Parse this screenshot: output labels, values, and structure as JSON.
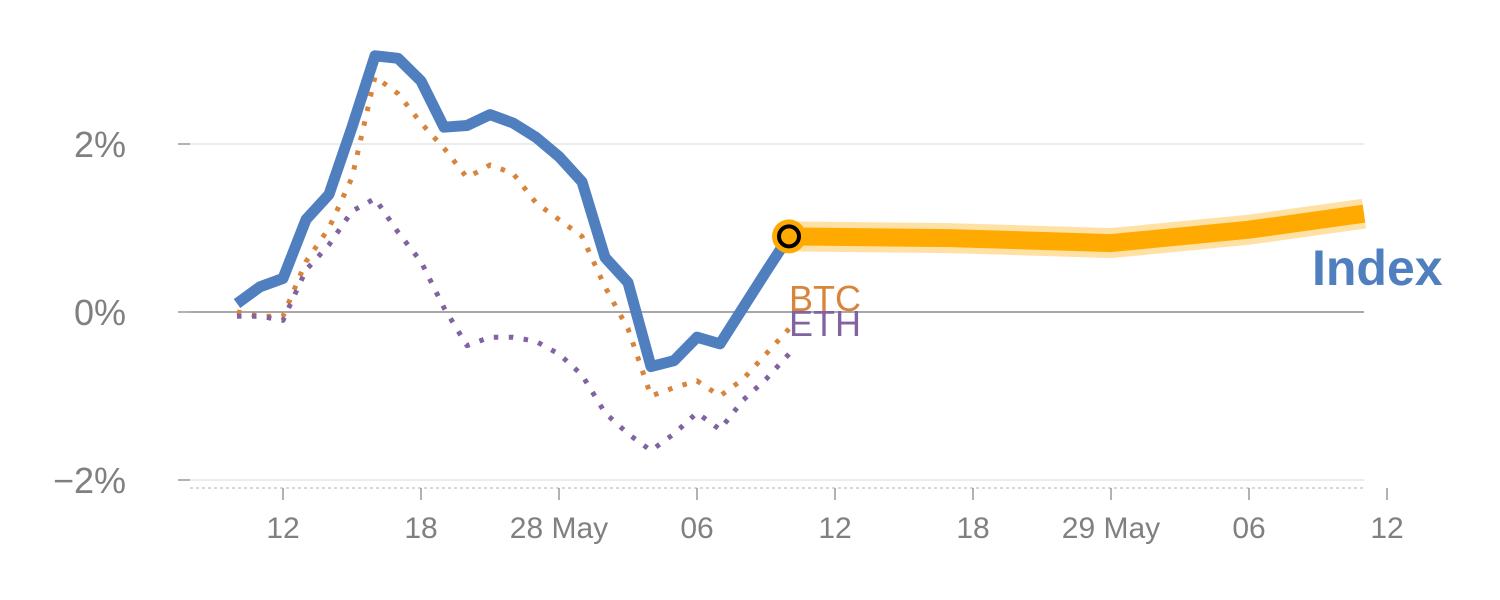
{
  "chart_data": {
    "type": "line",
    "title": "",
    "xlabel": "",
    "ylabel": "",
    "ylim": [
      -2,
      3.2
    ],
    "yticks": [
      {
        "value": -2,
        "label": "−2%"
      },
      {
        "value": 0,
        "label": "0%"
      },
      {
        "value": 2,
        "label": "2%"
      }
    ],
    "xticks": [
      {
        "day": 1,
        "label": "12"
      },
      {
        "day": 7,
        "label": "18"
      },
      {
        "day": 13,
        "label": "28 May"
      },
      {
        "day": 19,
        "label": "06"
      },
      {
        "day": 25,
        "label": "12"
      },
      {
        "day": 31,
        "label": "18"
      },
      {
        "day": 37,
        "label": "29 May"
      },
      {
        "day": 43,
        "label": "06"
      },
      {
        "day": 49,
        "label": "12"
      }
    ],
    "xlim": [
      -2,
      49
    ],
    "grid": true,
    "series": [
      {
        "name": "Index",
        "label": "Index",
        "color": "#4f7fbf",
        "style": "solid",
        "x": [
          -1,
          0,
          1,
          2,
          3,
          4,
          5,
          6,
          7,
          8,
          9,
          10,
          11,
          12,
          13,
          14,
          15,
          16,
          17,
          18,
          19,
          20,
          21,
          22,
          23
        ],
        "y": [
          0.1,
          0.3,
          0.4,
          1.1,
          1.4,
          2.2,
          3.05,
          3.02,
          2.75,
          2.2,
          2.22,
          2.35,
          2.25,
          2.08,
          1.85,
          1.55,
          0.65,
          0.35,
          -0.65,
          -0.58,
          -0.3,
          -0.38,
          0.05,
          0.48,
          0.9
        ]
      },
      {
        "name": "BTC",
        "label": "BTC",
        "color": "#d9843b",
        "style": "dotted",
        "x": [
          -1,
          0,
          1,
          2,
          3,
          4,
          5,
          6,
          7,
          8,
          9,
          10,
          11,
          12,
          13,
          14,
          15,
          16,
          17,
          18,
          19,
          20,
          21,
          22,
          23
        ],
        "y": [
          0.0,
          -0.05,
          -0.05,
          0.6,
          1.0,
          1.6,
          2.8,
          2.6,
          2.25,
          1.95,
          1.6,
          1.75,
          1.65,
          1.3,
          1.1,
          0.9,
          0.3,
          -0.2,
          -1.0,
          -0.9,
          -0.82,
          -1.0,
          -0.8,
          -0.5,
          -0.2
        ]
      },
      {
        "name": "ETH",
        "label": "ETH",
        "color": "#8064a2",
        "style": "dotted",
        "x": [
          -1,
          0,
          1,
          2,
          3,
          4,
          5,
          6,
          7,
          8,
          9,
          10,
          11,
          12,
          13,
          14,
          15,
          16,
          17,
          18,
          19,
          20,
          21,
          22,
          23
        ],
        "y": [
          -0.05,
          -0.05,
          -0.1,
          0.5,
          0.8,
          1.2,
          1.35,
          0.95,
          0.6,
          0.05,
          -0.4,
          -0.3,
          -0.3,
          -0.35,
          -0.5,
          -0.75,
          -1.2,
          -1.45,
          -1.65,
          -1.45,
          -1.2,
          -1.4,
          -1.05,
          -0.8,
          -0.5
        ]
      },
      {
        "name": "Forecast",
        "color": "#ffaa00",
        "style": "forecast",
        "x": [
          23,
          30,
          37,
          43,
          48
        ],
        "y": [
          0.9,
          0.88,
          0.82,
          0.98,
          1.17
        ]
      }
    ],
    "marker": {
      "x": 23,
      "y": 0.9,
      "fill": "#ffaa00",
      "ring": "#000000"
    }
  }
}
